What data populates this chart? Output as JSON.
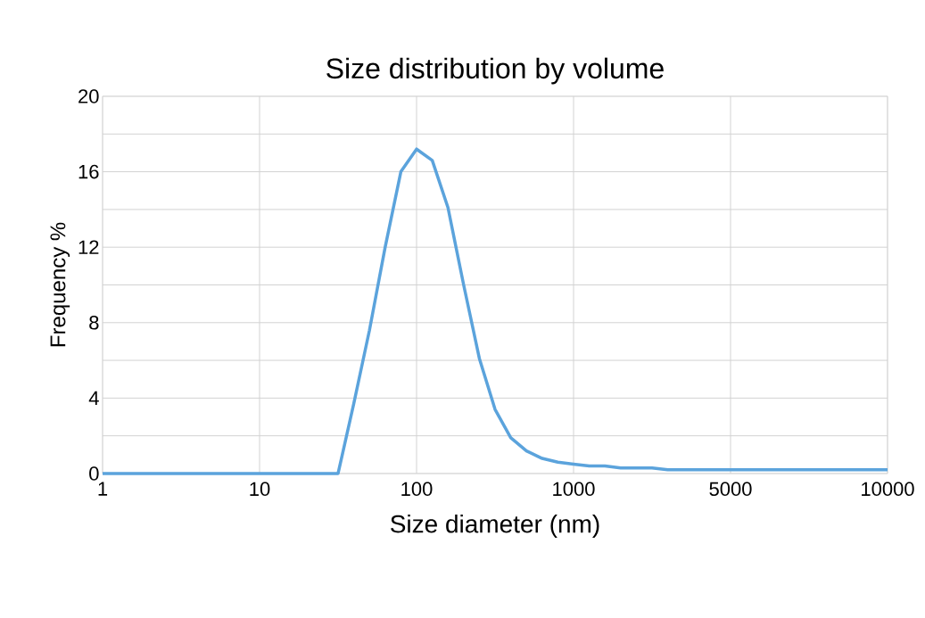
{
  "chart_data": {
    "type": "line",
    "title": "Size distribution by volume",
    "xlabel": "Size diameter (nm)",
    "ylabel": "Frequency %",
    "categories": [
      "1",
      null,
      null,
      null,
      null,
      null,
      null,
      null,
      null,
      null,
      "10",
      null,
      null,
      null,
      null,
      null,
      null,
      null,
      null,
      null,
      "100",
      null,
      null,
      null,
      null,
      null,
      null,
      null,
      null,
      null,
      "1000",
      null,
      null,
      null,
      null,
      null,
      null,
      null,
      null,
      null,
      "5000",
      null,
      null,
      null,
      null,
      null,
      null,
      null,
      null,
      null,
      "10000"
    ],
    "values": [
      0,
      0,
      0,
      0,
      0,
      0,
      0,
      0,
      0,
      0,
      0,
      0,
      0,
      0,
      0,
      0,
      3.7,
      7.6,
      12.0,
      16.0,
      17.2,
      16.6,
      14.1,
      10.0,
      6.1,
      3.4,
      1.9,
      1.2,
      0.8,
      0.6,
      0.5,
      0.4,
      0.4,
      0.3,
      0.3,
      0.3,
      0.2,
      0.2,
      0.2,
      0.2,
      0.2,
      0.2,
      0.2,
      0.2,
      0.2,
      0.2,
      0.2,
      0.2,
      0.2,
      0.2,
      0.2
    ],
    "color": "#5ba3dc",
    "ylim": [
      0,
      20
    ],
    "yticks": [
      0,
      4,
      8,
      12,
      16,
      20
    ],
    "grid": true,
    "marker": "none",
    "line_style": "solid"
  }
}
